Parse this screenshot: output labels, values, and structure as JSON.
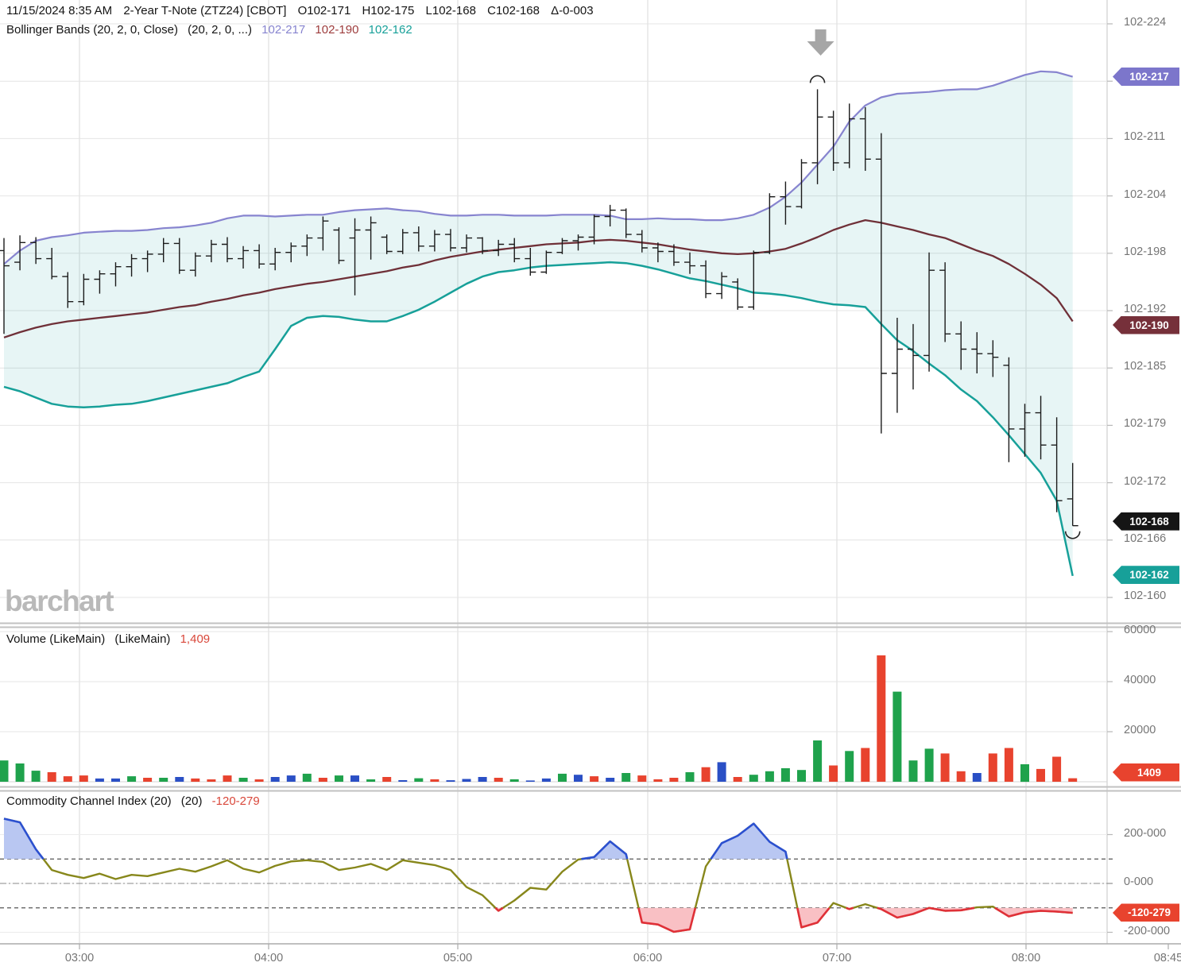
{
  "header": {
    "line1": {
      "datetime": "11/15/2024 8:35 AM",
      "symbol": "2-Year T-Note (ZTZ24) [CBOT]",
      "open": "O102-171",
      "high": "H102-175",
      "low": "L102-168",
      "close": "C102-168",
      "change": "Δ-0-003"
    },
    "line2": {
      "study": "Bollinger Bands (20, 2, 0, Close)",
      "params": "(20, 2, 0, ...)",
      "upper_value": "102-217",
      "middle_value": "102-190",
      "lower_value": "102-162"
    }
  },
  "volume_panel": {
    "label": "Volume (LikeMain)",
    "params": "(LikeMain)",
    "current_label": "1,409"
  },
  "cci_panel": {
    "label": "Commodity Channel Index (20)",
    "params": "(20)",
    "current_label": "-120-279"
  },
  "watermark": "barchart",
  "colors": {
    "band_upper": "#8784CF",
    "band_middle": "#6F3038",
    "band_lower": "#17A099",
    "band_fill": "rgba(23,160,153,0.10)",
    "ohlc_bar": "#1B1B1B",
    "vol_up": "#1FA24C",
    "vol_down": "#E8432E",
    "vol_neutral": "#2A4FC5",
    "cci_line": "#87871B",
    "cci_high_line": "#2B50D0",
    "cci_high_fill": "#B9C7F2",
    "cci_low_line": "#E03038",
    "cci_low_fill": "#F9C0C4",
    "grid_h": "#E4E4E4",
    "grid_v": "#D8D8D8",
    "axis_text": "#757575",
    "separator": "#C2C2C2",
    "arrow": "#A6A6A6",
    "badge_upper": "#7C76CB",
    "badge_middle": "#76303A",
    "badge_close": "#151515",
    "badge_lower": "#17A099",
    "badge_red": "#E8432E"
  },
  "axes": {
    "time": {
      "labels": [
        "03:00",
        "04:00",
        "05:00",
        "06:00",
        "07:00",
        "08:00",
        "08:45"
      ]
    },
    "price": {
      "unit_note": "value = thirty-seconds above 102, in tenths (16.8 means 102-168)",
      "ticks": [
        {
          "v": 22.4,
          "label": "102-224"
        },
        {
          "v": 21.76,
          "label": ""
        },
        {
          "v": 21.12,
          "label": "102-211"
        },
        {
          "v": 20.48,
          "label": "102-204"
        },
        {
          "v": 19.84,
          "label": "102-198"
        },
        {
          "v": 19.2,
          "label": "102-192"
        },
        {
          "v": 18.56,
          "label": "102-185"
        },
        {
          "v": 17.92,
          "label": "102-179"
        },
        {
          "v": 17.28,
          "label": "102-172"
        },
        {
          "v": 16.64,
          "label": "102-166"
        },
        {
          "v": 16.0,
          "label": "102-160"
        }
      ]
    },
    "volume": {
      "ticks": [
        {
          "v": 60000,
          "label": "60000"
        },
        {
          "v": 40000,
          "label": "40000"
        },
        {
          "v": 20000,
          "label": "20000"
        }
      ]
    },
    "cci": {
      "ticks": [
        {
          "v": 200,
          "label": "200-000"
        },
        {
          "v": 0,
          "label": "0-000"
        },
        {
          "v": -200,
          "label": "-200-000"
        }
      ]
    }
  },
  "badges": {
    "price": [
      {
        "id": "upper",
        "label": "102-217",
        "v": 21.81
      },
      {
        "id": "middle",
        "label": "102-190",
        "v": 19.04
      },
      {
        "id": "close",
        "label": "102-168",
        "v": 16.85
      },
      {
        "id": "lower",
        "label": "102-162",
        "v": 16.25
      }
    ],
    "volume": {
      "label": "1409",
      "v": 1409
    },
    "cci": {
      "label": "-120-279",
      "v": -120.28
    }
  },
  "chart_data": [
    {
      "id": "price",
      "type": "ohlc",
      "title": "2-Year T-Note (ZTZ24) [CBOT], 5-minute bars",
      "ylim": [
        16.0,
        22.4
      ],
      "bars_ohlc": [
        [
          19.87,
          20.01,
          18.94,
          19.7
        ],
        [
          19.74,
          20.04,
          19.65,
          19.96
        ],
        [
          19.96,
          20.02,
          19.72,
          19.78
        ],
        [
          19.78,
          19.9,
          19.55,
          19.58
        ],
        [
          19.58,
          19.63,
          19.23,
          19.3
        ],
        [
          19.3,
          19.61,
          19.26,
          19.55
        ],
        [
          19.55,
          19.65,
          19.39,
          19.61
        ],
        [
          19.61,
          19.74,
          19.47,
          19.69
        ],
        [
          19.69,
          19.83,
          19.58,
          19.78
        ],
        [
          19.78,
          19.87,
          19.63,
          19.83
        ],
        [
          19.83,
          20.01,
          19.74,
          19.95
        ],
        [
          19.95,
          20.01,
          19.61,
          19.65
        ],
        [
          19.65,
          19.85,
          19.58,
          19.81
        ],
        [
          19.81,
          19.99,
          19.74,
          19.94
        ],
        [
          19.94,
          20.02,
          19.74,
          19.78
        ],
        [
          19.78,
          19.92,
          19.67,
          19.87
        ],
        [
          19.87,
          19.94,
          19.67,
          19.72
        ],
        [
          19.72,
          19.9,
          19.65,
          19.85
        ],
        [
          19.85,
          19.96,
          19.74,
          19.92
        ],
        [
          19.92,
          20.05,
          19.81,
          20.01
        ],
        [
          20.01,
          20.25,
          19.87,
          20.2
        ],
        [
          20.1,
          20.13,
          19.72,
          19.76
        ],
        [
          20.01,
          20.23,
          19.37,
          20.1
        ],
        [
          20.1,
          20.25,
          19.77,
          20.18
        ],
        [
          20.02,
          20.05,
          19.83,
          19.86
        ],
        [
          19.86,
          20.11,
          19.83,
          20.07
        ],
        [
          20.07,
          20.14,
          19.86,
          19.92
        ],
        [
          19.92,
          20.1,
          19.86,
          20.05
        ],
        [
          20.05,
          20.11,
          19.86,
          19.9
        ],
        [
          19.9,
          20.05,
          19.85,
          20.01
        ],
        [
          20.01,
          20.02,
          19.83,
          19.87
        ],
        [
          19.87,
          19.99,
          19.81,
          19.94
        ],
        [
          19.94,
          20.01,
          19.74,
          19.78
        ],
        [
          19.78,
          19.9,
          19.59,
          19.63
        ],
        [
          19.63,
          19.87,
          19.61,
          19.85
        ],
        [
          19.85,
          20.01,
          19.83,
          19.98
        ],
        [
          19.98,
          20.05,
          19.87,
          20.02
        ],
        [
          20.02,
          20.27,
          19.94,
          20.25
        ],
        [
          20.25,
          20.38,
          20.14,
          20.32
        ],
        [
          20.32,
          20.34,
          20.01,
          20.05
        ],
        [
          20.05,
          20.1,
          19.85,
          19.9
        ],
        [
          19.9,
          19.96,
          19.74,
          19.86
        ],
        [
          19.86,
          19.94,
          19.7,
          19.74
        ],
        [
          19.74,
          19.85,
          19.61,
          19.7
        ],
        [
          19.7,
          19.76,
          19.34,
          19.39
        ],
        [
          19.39,
          19.63,
          19.33,
          19.58
        ],
        [
          19.52,
          19.56,
          19.21,
          19.24
        ],
        [
          19.24,
          19.87,
          19.21,
          19.85
        ],
        [
          19.85,
          20.51,
          19.83,
          20.47
        ],
        [
          20.47,
          20.64,
          20.16,
          20.36
        ],
        [
          20.36,
          20.89,
          20.34,
          20.85
        ],
        [
          20.85,
          21.67,
          20.61,
          21.36
        ],
        [
          21.36,
          21.43,
          20.76,
          20.85
        ],
        [
          20.85,
          21.51,
          20.79,
          21.34
        ],
        [
          21.34,
          21.47,
          20.76,
          20.89
        ],
        [
          20.89,
          21.18,
          17.83,
          18.5
        ],
        [
          18.5,
          19.12,
          18.06,
          18.77
        ],
        [
          18.77,
          19.05,
          18.32,
          18.7
        ],
        [
          18.7,
          19.85,
          18.52,
          19.65
        ],
        [
          19.65,
          19.74,
          18.85,
          18.94
        ],
        [
          18.94,
          19.08,
          18.54,
          18.77
        ],
        [
          18.77,
          18.96,
          18.5,
          18.72
        ],
        [
          18.72,
          18.87,
          18.46,
          18.68
        ],
        [
          18.59,
          18.68,
          17.51,
          17.88
        ],
        [
          17.88,
          18.16,
          17.57,
          18.06
        ],
        [
          18.06,
          18.25,
          17.54,
          17.7
        ],
        [
          17.7,
          18.01,
          16.95,
          17.08
        ],
        [
          17.1,
          17.5,
          16.8,
          16.8
        ]
      ],
      "bollinger": {
        "upper": [
          19.72,
          19.87,
          19.98,
          20.02,
          20.04,
          20.07,
          20.08,
          20.09,
          20.09,
          20.1,
          20.12,
          20.13,
          20.15,
          20.18,
          20.23,
          20.26,
          20.26,
          20.25,
          20.26,
          20.27,
          20.27,
          20.3,
          20.32,
          20.33,
          20.34,
          20.32,
          20.31,
          20.28,
          20.26,
          20.26,
          20.27,
          20.27,
          20.26,
          20.26,
          20.26,
          20.27,
          20.27,
          20.27,
          20.26,
          20.22,
          20.22,
          20.23,
          20.22,
          20.22,
          20.21,
          20.21,
          20.23,
          20.27,
          20.35,
          20.47,
          20.63,
          20.83,
          21.03,
          21.31,
          21.49,
          21.58,
          21.62,
          21.63,
          21.64,
          21.66,
          21.67,
          21.67,
          21.71,
          21.77,
          21.83,
          21.87,
          21.86,
          21.81
        ],
        "middle": [
          18.9,
          18.96,
          19.01,
          19.05,
          19.08,
          19.1,
          19.12,
          19.14,
          19.16,
          19.18,
          19.21,
          19.24,
          19.26,
          19.3,
          19.33,
          19.37,
          19.4,
          19.44,
          19.47,
          19.5,
          19.52,
          19.55,
          19.58,
          19.61,
          19.64,
          19.68,
          19.71,
          19.76,
          19.8,
          19.83,
          19.86,
          19.88,
          19.9,
          19.92,
          19.94,
          19.95,
          19.96,
          19.98,
          19.99,
          19.98,
          19.96,
          19.94,
          19.91,
          19.88,
          19.86,
          19.84,
          19.83,
          19.84,
          19.86,
          19.89,
          19.95,
          20.02,
          20.1,
          20.16,
          20.21,
          20.18,
          20.14,
          20.1,
          20.05,
          20.01,
          19.94,
          19.87,
          19.81,
          19.72,
          19.61,
          19.49,
          19.34,
          19.08
        ],
        "lower": [
          18.35,
          18.3,
          18.23,
          18.16,
          18.13,
          18.12,
          18.13,
          18.15,
          18.16,
          18.19,
          18.23,
          18.27,
          18.31,
          18.35,
          18.39,
          18.46,
          18.52,
          18.77,
          19.03,
          19.12,
          19.14,
          19.13,
          19.1,
          19.08,
          19.08,
          19.14,
          19.21,
          19.3,
          19.4,
          19.5,
          19.58,
          19.63,
          19.65,
          19.68,
          19.7,
          19.71,
          19.72,
          19.73,
          19.74,
          19.73,
          19.7,
          19.66,
          19.61,
          19.56,
          19.53,
          19.49,
          19.45,
          19.4,
          19.39,
          19.37,
          19.34,
          19.3,
          19.27,
          19.26,
          19.24,
          19.05,
          18.87,
          18.75,
          18.61,
          18.48,
          18.32,
          18.19,
          18.01,
          17.81,
          17.6,
          17.39,
          17.08,
          16.24
        ]
      },
      "markers": [
        {
          "type": "arc-over-high",
          "bar": 51
        },
        {
          "type": "arc-under-low",
          "bar": 67
        },
        {
          "type": "down-arrow",
          "bar": 51
        }
      ]
    },
    {
      "id": "volume",
      "type": "bar",
      "values": [
        8500,
        7300,
        4400,
        3800,
        2200,
        2500,
        1300,
        1300,
        2200,
        1600,
        1600,
        1900,
        1300,
        950,
        2500,
        1600,
        950,
        1900,
        2500,
        3200,
        1600,
        2500,
        2500,
        950,
        1900,
        650,
        1400,
        1000,
        600,
        1100,
        1900,
        1600,
        1000,
        500,
        1300,
        3200,
        2800,
        2200,
        1600,
        3500,
        2500,
        1000,
        1600,
        3800,
        5800,
        7800,
        1900,
        2800,
        4200,
        5400,
        4700,
        16500,
        6500,
        12300,
        13500,
        50500,
        36000,
        8500,
        13200,
        11300,
        4200,
        3500,
        11300,
        13500,
        7000,
        5100,
        10000,
        1409
      ],
      "colors": [
        "g",
        "g",
        "g",
        "r",
        "r",
        "r",
        "b",
        "b",
        "g",
        "r",
        "g",
        "b",
        "r",
        "r",
        "r",
        "g",
        "r",
        "b",
        "b",
        "g",
        "r",
        "g",
        "b",
        "g",
        "r",
        "b",
        "g",
        "r",
        "b",
        "b",
        "b",
        "r",
        "g",
        "b",
        "b",
        "g",
        "b",
        "r",
        "b",
        "g",
        "r",
        "r",
        "r",
        "g",
        "r",
        "b",
        "r",
        "g",
        "g",
        "g",
        "g",
        "g",
        "r",
        "g",
        "r",
        "r",
        "g",
        "g",
        "g",
        "r",
        "r",
        "b",
        "r",
        "r",
        "g",
        "r",
        "r",
        "r"
      ],
      "current": 1409
    },
    {
      "id": "cci",
      "type": "line",
      "period": 20,
      "levels": [
        100,
        0,
        -100
      ],
      "values": [
        265,
        250,
        140,
        55,
        35,
        22,
        40,
        18,
        35,
        30,
        45,
        60,
        48,
        70,
        95,
        60,
        45,
        72,
        90,
        95,
        88,
        55,
        65,
        80,
        55,
        95,
        85,
        75,
        55,
        -15,
        -48,
        -112,
        -70,
        -18,
        -25,
        48,
        98,
        108,
        172,
        120,
        -160,
        -168,
        -198,
        -188,
        70,
        165,
        195,
        245,
        170,
        130,
        -180,
        -160,
        -80,
        -105,
        -85,
        -105,
        -140,
        -125,
        -100,
        -112,
        -110,
        -98,
        -95,
        -135,
        -118,
        -112,
        -115,
        -120.28
      ],
      "current": -120.279
    }
  ]
}
